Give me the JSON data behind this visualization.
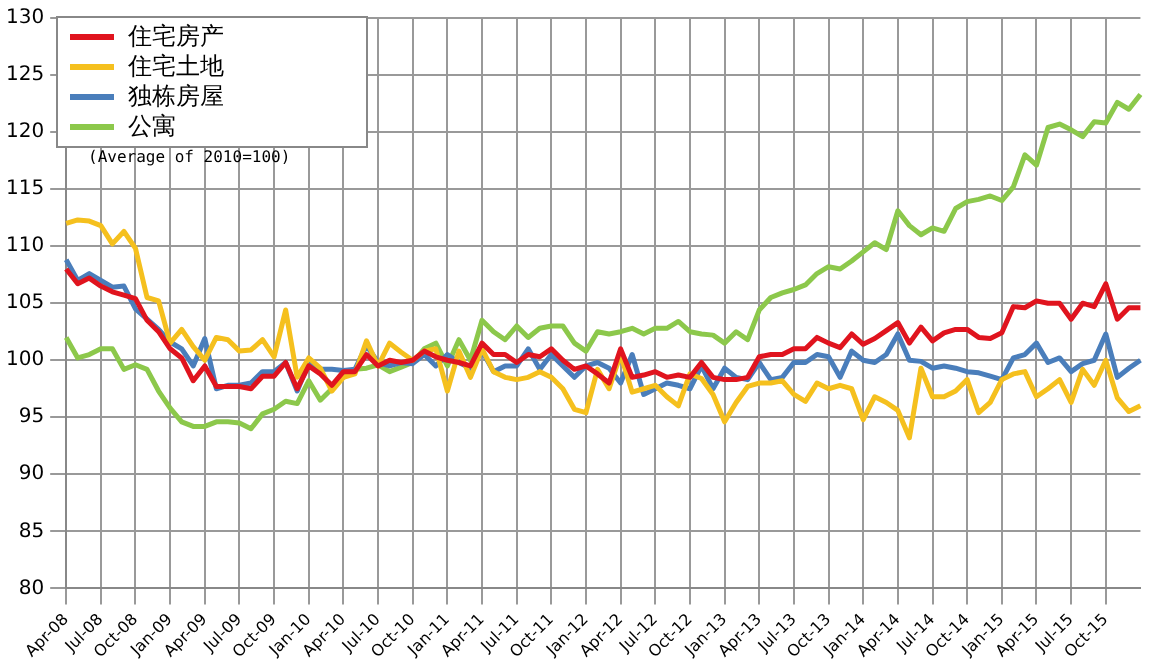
{
  "chart_data": {
    "type": "line",
    "categories": [
      "Apr-08",
      null,
      null,
      "Jul-08",
      null,
      null,
      "Oct-08",
      null,
      null,
      "Jan-09",
      null,
      null,
      "Apr-09",
      null,
      null,
      "Jul-09",
      null,
      null,
      "Oct-09",
      null,
      null,
      "Jan-10",
      null,
      null,
      "Apr-10",
      null,
      null,
      "Jul-10",
      null,
      null,
      "Oct-10",
      null,
      null,
      "Jan-11",
      null,
      null,
      "Apr-11",
      null,
      null,
      "Jul-11",
      null,
      null,
      "Oct-11",
      null,
      null,
      "Jan-12",
      null,
      null,
      "Apr-12",
      null,
      null,
      "Jul-12",
      null,
      null,
      "Oct-12",
      null,
      null,
      "Jan-13",
      null,
      null,
      "Apr-13",
      null,
      null,
      "Jul-13",
      null,
      null,
      "Oct-13",
      null,
      null,
      "Jan-14",
      null,
      null,
      "Apr-14",
      null,
      null,
      "Jul-14",
      null,
      null,
      "Oct-14",
      null,
      null,
      "Jan-15",
      null,
      null,
      "Apr-15",
      null,
      null,
      "Jul-15",
      null,
      null,
      "Oct-15",
      null,
      null,
      null
    ],
    "series": [
      {
        "name": "住宅房产",
        "color": "#e0141e",
        "values": [
          108,
          106.7,
          107.2,
          106.5,
          106,
          105.7,
          105.4,
          103.5,
          102.5,
          101,
          100.2,
          98.2,
          99.5,
          97.7,
          97.7,
          97.7,
          97.5,
          98.6,
          98.6,
          99.8,
          97.5,
          99.5,
          98.8,
          97.8,
          99,
          99,
          100.5,
          99.5,
          100,
          99.8,
          100,
          100.8,
          100.3,
          100,
          99.8,
          99.5,
          101.5,
          100.5,
          100.5,
          99.8,
          100.5,
          100.3,
          101,
          100,
          99.2,
          99.5,
          98.8,
          98,
          101,
          98.5,
          98.7,
          99,
          98.5,
          98.7,
          98.5,
          99.8,
          98.5,
          98.3,
          98.3,
          98.5,
          100.3,
          100.5,
          100.5,
          101,
          101,
          102,
          101.5,
          101.1,
          102.3,
          101.4,
          101.9,
          102.6,
          103.3,
          101.5,
          102.9,
          101.7,
          102.4,
          102.7,
          102.7,
          102,
          101.9,
          102.4,
          104.7,
          104.6,
          105.2,
          105,
          105,
          103.6,
          105,
          104.7,
          106.7,
          103.6,
          104.6,
          104.6
        ]
      },
      {
        "name": "住宅土地",
        "color": "#f5c01e",
        "values": [
          112,
          112.3,
          112.2,
          111.8,
          110.2,
          111.3,
          109.8,
          105.5,
          105.2,
          101.5,
          102.7,
          101.2,
          100,
          102,
          101.8,
          100.8,
          100.9,
          101.8,
          100.3,
          104.4,
          98.5,
          100.2,
          99.3,
          97.3,
          98.5,
          98.8,
          101.7,
          99.5,
          101.5,
          100.7,
          100,
          100.8,
          101,
          97.3,
          100.8,
          98.5,
          101,
          99,
          98.5,
          98.3,
          98.5,
          99,
          98.5,
          97.5,
          95.7,
          95.4,
          99.2,
          97.5,
          100.5,
          97.2,
          97.5,
          97.8,
          96.8,
          96,
          98.8,
          98.4,
          97,
          94.6,
          96.3,
          97.7,
          98,
          98,
          98.2,
          97,
          96.4,
          98,
          97.5,
          97.8,
          97.5,
          94.8,
          96.8,
          96.3,
          95.6,
          93.2,
          99.3,
          96.8,
          96.8,
          97.3,
          98.3,
          95.4,
          96.3,
          98.3,
          98.8,
          99,
          96.8,
          97.5,
          98.3,
          96.3,
          99.2,
          97.8,
          100,
          96.7,
          95.5,
          96
        ]
      },
      {
        "name": "独栋房屋",
        "color": "#4a7ebb",
        "values": [
          108.8,
          107,
          107.6,
          107,
          106.4,
          106.5,
          104.5,
          103.6,
          102.7,
          101.6,
          101,
          99.5,
          101.9,
          97.5,
          97.8,
          97.8,
          98,
          99,
          99,
          99.8,
          97.3,
          99.8,
          99.2,
          99.2,
          99.1,
          99.2,
          101.3,
          99.8,
          99.5,
          99.8,
          99.7,
          100.5,
          99.5,
          100.5,
          99.8,
          99.3,
          100.8,
          99,
          99.5,
          99.5,
          101,
          99.2,
          100.5,
          99.5,
          98.5,
          99.5,
          99.8,
          99.3,
          98,
          100.5,
          97,
          97.5,
          98,
          97.8,
          97.5,
          99.5,
          97.5,
          99.3,
          98.5,
          98.3,
          99.8,
          98.3,
          98.5,
          99.8,
          99.8,
          100.5,
          100.3,
          98.5,
          100.8,
          100,
          99.8,
          100.5,
          102.3,
          100,
          99.9,
          99.3,
          99.5,
          99.3,
          99,
          98.9,
          98.6,
          98.3,
          100.2,
          100.5,
          101.5,
          99.8,
          100.2,
          99,
          99.7,
          100,
          102.3,
          98.5,
          99.3,
          100
        ]
      },
      {
        "name": "公寓",
        "color": "#8cc84b",
        "values": [
          102,
          100.2,
          100.5,
          101,
          101,
          99.2,
          99.6,
          99.2,
          97.3,
          95.8,
          94.6,
          94.2,
          94.2,
          94.6,
          94.6,
          94.5,
          94,
          95.3,
          95.7,
          96.4,
          96.2,
          98.2,
          96.5,
          97.5,
          98.5,
          99.2,
          99.3,
          99.6,
          99,
          99.4,
          99.8,
          101,
          101.5,
          99.5,
          101.8,
          100,
          103.5,
          102.5,
          101.8,
          103,
          102,
          102.8,
          103,
          103,
          101.5,
          100.8,
          102.5,
          102.3,
          102.5,
          102.8,
          102.3,
          102.8,
          102.8,
          103.4,
          102.5,
          102.3,
          102.2,
          101.5,
          102.5,
          101.8,
          104.4,
          105.5,
          105.9,
          106.2,
          106.6,
          107.6,
          108.2,
          108,
          108.7,
          109.5,
          110.3,
          109.7,
          113.1,
          111.8,
          111,
          111.6,
          111.3,
          113.3,
          113.9,
          114.1,
          114.4,
          114,
          115.2,
          118,
          117.1,
          120.4,
          120.7,
          120.2,
          119.6,
          120.9,
          120.8,
          122.6,
          122,
          123.3
        ]
      }
    ],
    "ylim": [
      80,
      130
    ],
    "yticks": [
      80,
      85,
      90,
      95,
      100,
      105,
      110,
      115,
      120,
      125,
      130
    ],
    "grid": true,
    "legend": "top left",
    "annotations": [
      "(Average of 2010=100)"
    ]
  }
}
